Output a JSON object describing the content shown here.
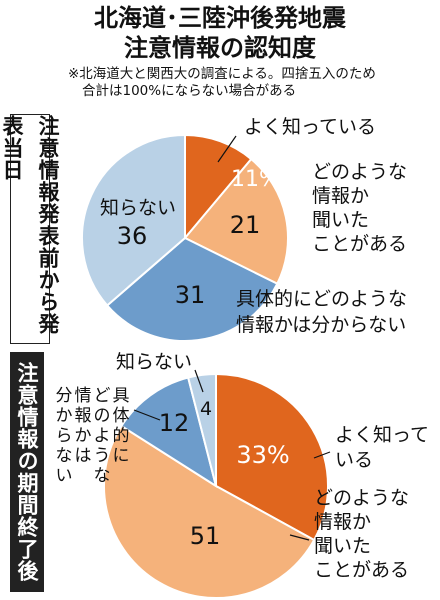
{
  "header": {
    "title_line1": "北海道･三陸沖後発地震",
    "title_line2": "注意情報の認知度",
    "note_line1": "※北海道大と関西大の調査による。四捨五入のため",
    "note_line2": "合計は100%にならない場合がある"
  },
  "chart_data": [
    {
      "type": "pie",
      "title": "注意情報発表前から発表当日",
      "slices": [
        {
          "key": "know_well",
          "label": "よく知っている",
          "value": 11,
          "value_label": "11%",
          "color": "#e0661e"
        },
        {
          "key": "heard",
          "label": "どのような情報か聞いたことがある",
          "label_lines": [
            "どのような",
            "情報か",
            "聞いた",
            "ことがある"
          ],
          "value": 21,
          "value_label": "21",
          "color": "#f5b27b"
        },
        {
          "key": "specific_unknown",
          "label": "具体的にどのような情報かは分からない",
          "label_lines": [
            "具体的にどのような",
            "情報かは分からない"
          ],
          "value": 31,
          "value_label": "31",
          "color": "#6d9ccb"
        },
        {
          "key": "dont_know",
          "label": "知らない",
          "value": 36,
          "value_label": "36",
          "color": "#b9d1e6"
        }
      ]
    },
    {
      "type": "pie",
      "title": "注意情報の期間終了後",
      "slices": [
        {
          "key": "know_well",
          "label": "よく知っている",
          "label_lines": [
            "よく知って",
            "いる"
          ],
          "value": 33,
          "value_label": "33%",
          "color": "#e0661e"
        },
        {
          "key": "heard",
          "label": "どのような情報か聞いたことがある",
          "label_lines": [
            "どのような",
            "情報か",
            "聞いた",
            "ことがある"
          ],
          "value": 51,
          "value_label": "51",
          "color": "#f5b27b"
        },
        {
          "key": "specific_unknown",
          "label": "具体的にどのような情報かは分からない",
          "label_vertical": [
            "具体的に",
            "どのような",
            "情報かは",
            "分からない"
          ],
          "value": 12,
          "value_label": "12",
          "color": "#6d9ccb"
        },
        {
          "key": "dont_know",
          "label": "知らない",
          "value": 4,
          "value_label": "4",
          "color": "#b9d1e6"
        }
      ]
    }
  ]
}
